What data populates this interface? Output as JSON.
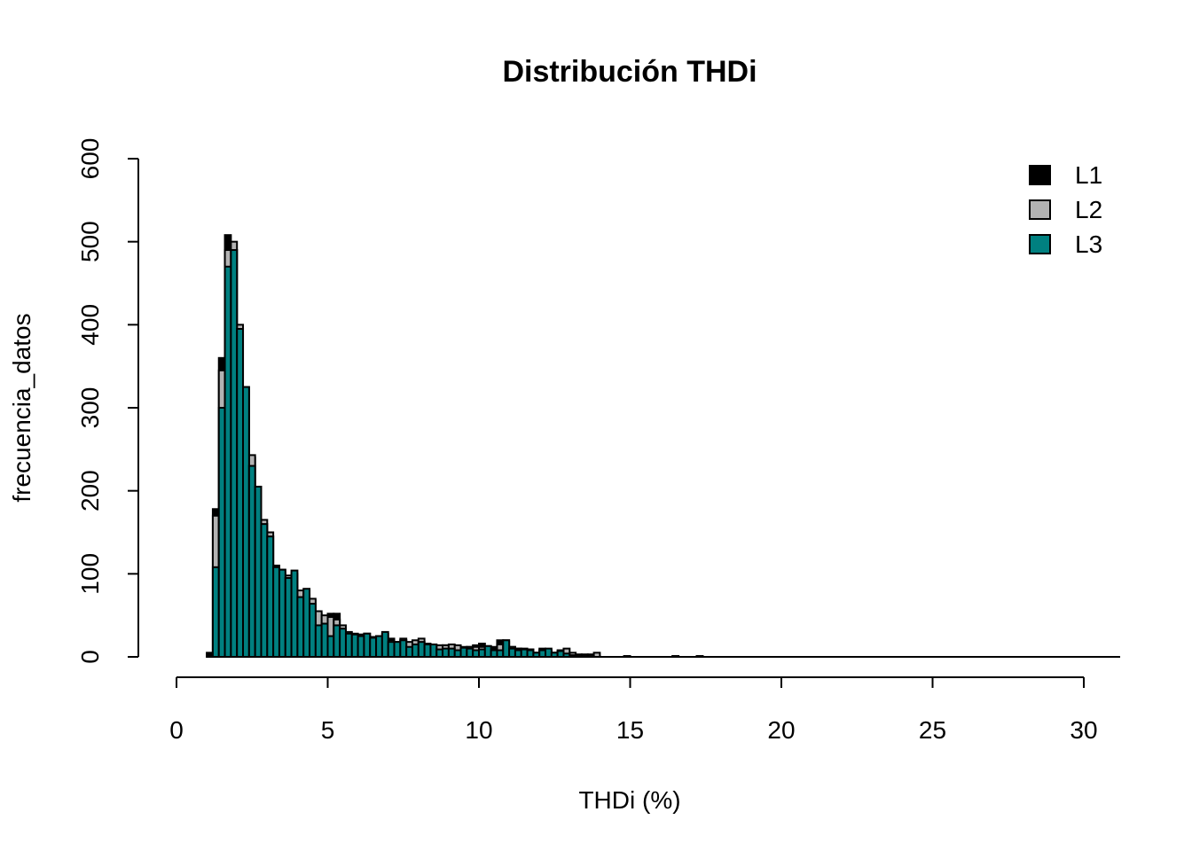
{
  "chart_data": {
    "type": "histogram",
    "title": "Distribución THDi",
    "xlabel": "THDi (%)",
    "ylabel": "frecuencia_datos",
    "xlim": [
      0,
      30
    ],
    "ylim": [
      0,
      600
    ],
    "x_ticks": [
      "0",
      "5",
      "10",
      "15",
      "20",
      "25",
      "30"
    ],
    "y_ticks": [
      "0",
      "100",
      "200",
      "300",
      "400",
      "500",
      "600"
    ],
    "bin_width": 0.2,
    "grid": false,
    "legend_position": "top-right",
    "series": [
      {
        "name": "L1",
        "color": "#000000",
        "bins": [
          [
            1.0,
            5
          ],
          [
            1.2,
            178
          ],
          [
            1.4,
            360
          ],
          [
            1.6,
            508
          ],
          [
            1.8,
            490
          ],
          [
            2.0,
            395
          ],
          [
            2.2,
            325
          ],
          [
            2.4,
            240
          ],
          [
            2.6,
            205
          ],
          [
            2.8,
            160
          ],
          [
            3.0,
            145
          ],
          [
            3.2,
            108
          ],
          [
            3.4,
            105
          ],
          [
            3.6,
            95
          ],
          [
            3.8,
            100
          ],
          [
            4.0,
            72
          ],
          [
            4.2,
            80
          ],
          [
            4.4,
            68
          ],
          [
            4.6,
            52
          ],
          [
            4.8,
            48
          ],
          [
            5.0,
            52
          ],
          [
            5.2,
            52
          ],
          [
            5.4,
            34
          ],
          [
            5.6,
            28
          ],
          [
            5.8,
            27
          ],
          [
            6.0,
            25
          ],
          [
            6.2,
            25
          ],
          [
            6.4,
            23
          ],
          [
            6.6,
            25
          ],
          [
            6.8,
            28
          ],
          [
            7.0,
            22
          ],
          [
            7.2,
            18
          ],
          [
            7.4,
            20
          ],
          [
            7.6,
            17
          ],
          [
            7.8,
            15
          ],
          [
            8.0,
            18
          ],
          [
            8.2,
            15
          ],
          [
            8.4,
            12
          ],
          [
            8.6,
            12
          ],
          [
            8.8,
            14
          ],
          [
            9.0,
            12
          ],
          [
            9.2,
            12
          ],
          [
            9.4,
            11
          ],
          [
            9.6,
            12
          ],
          [
            9.8,
            14
          ],
          [
            10.0,
            16
          ],
          [
            10.2,
            13
          ],
          [
            10.4,
            12
          ],
          [
            10.6,
            20
          ],
          [
            10.8,
            20
          ],
          [
            11.0,
            12
          ],
          [
            11.2,
            10
          ],
          [
            11.4,
            9
          ],
          [
            11.6,
            9
          ],
          [
            11.8,
            5
          ],
          [
            12.0,
            8
          ],
          [
            12.2,
            8
          ],
          [
            12.4,
            5
          ],
          [
            12.6,
            7
          ],
          [
            12.8,
            4
          ],
          [
            13.0,
            3
          ],
          [
            13.2,
            2
          ],
          [
            13.4,
            2
          ],
          [
            13.6,
            1
          ],
          [
            13.8,
            1
          ],
          [
            14.8,
            1
          ],
          [
            16.4,
            1
          ],
          [
            17.2,
            1
          ]
        ]
      },
      {
        "name": "L2",
        "color": "#b3b3b3",
        "bins": [
          [
            1.2,
            170
          ],
          [
            1.4,
            345
          ],
          [
            1.6,
            490
          ],
          [
            1.8,
            500
          ],
          [
            2.0,
            400
          ],
          [
            2.2,
            320
          ],
          [
            2.4,
            243
          ],
          [
            2.6,
            200
          ],
          [
            2.8,
            165
          ],
          [
            3.0,
            150
          ],
          [
            3.2,
            110
          ],
          [
            3.4,
            100
          ],
          [
            3.6,
            98
          ],
          [
            3.8,
            85
          ],
          [
            4.0,
            80
          ],
          [
            4.2,
            75
          ],
          [
            4.4,
            70
          ],
          [
            4.6,
            55
          ],
          [
            4.8,
            50
          ],
          [
            5.0,
            48
          ],
          [
            5.2,
            45
          ],
          [
            5.4,
            38
          ],
          [
            5.6,
            30
          ],
          [
            5.8,
            28
          ],
          [
            6.0,
            27
          ],
          [
            6.2,
            28
          ],
          [
            6.4,
            24
          ],
          [
            6.6,
            22
          ],
          [
            6.8,
            20
          ],
          [
            7.0,
            20
          ],
          [
            7.2,
            16
          ],
          [
            7.4,
            22
          ],
          [
            7.6,
            18
          ],
          [
            7.8,
            20
          ],
          [
            8.0,
            22
          ],
          [
            8.2,
            16
          ],
          [
            8.4,
            14
          ],
          [
            8.6,
            14
          ],
          [
            8.8,
            14
          ],
          [
            9.0,
            15
          ],
          [
            9.2,
            14
          ],
          [
            9.4,
            12
          ],
          [
            9.6,
            12
          ],
          [
            9.8,
            12
          ],
          [
            10.0,
            12
          ],
          [
            10.2,
            10
          ],
          [
            10.4,
            10
          ],
          [
            10.6,
            15
          ],
          [
            10.8,
            18
          ],
          [
            11.0,
            12
          ],
          [
            11.2,
            10
          ],
          [
            11.4,
            10
          ],
          [
            11.6,
            9
          ],
          [
            11.8,
            5
          ],
          [
            12.0,
            10
          ],
          [
            12.2,
            8
          ],
          [
            12.4,
            5
          ],
          [
            12.6,
            8
          ],
          [
            12.8,
            10
          ],
          [
            13.0,
            5
          ],
          [
            13.2,
            3
          ],
          [
            13.4,
            3
          ],
          [
            13.6,
            3
          ],
          [
            13.8,
            5
          ],
          [
            14.8,
            1
          ],
          [
            16.4,
            1
          ],
          [
            17.2,
            1
          ]
        ]
      },
      {
        "name": "L3",
        "color": "#008080",
        "bins": [
          [
            1.2,
            108
          ],
          [
            1.4,
            300
          ],
          [
            1.6,
            470
          ],
          [
            1.8,
            490
          ],
          [
            2.0,
            395
          ],
          [
            2.2,
            325
          ],
          [
            2.4,
            230
          ],
          [
            2.6,
            205
          ],
          [
            2.8,
            160
          ],
          [
            3.0,
            145
          ],
          [
            3.2,
            108
          ],
          [
            3.4,
            105
          ],
          [
            3.6,
            95
          ],
          [
            3.8,
            104
          ],
          [
            4.0,
            72
          ],
          [
            4.2,
            82
          ],
          [
            4.4,
            64
          ],
          [
            4.6,
            38
          ],
          [
            4.8,
            40
          ],
          [
            5.0,
            25
          ],
          [
            5.2,
            38
          ],
          [
            5.4,
            34
          ],
          [
            5.6,
            28
          ],
          [
            5.8,
            27
          ],
          [
            6.0,
            25
          ],
          [
            6.2,
            28
          ],
          [
            6.4,
            23
          ],
          [
            6.6,
            25
          ],
          [
            6.8,
            30
          ],
          [
            7.0,
            18
          ],
          [
            7.2,
            18
          ],
          [
            7.4,
            20
          ],
          [
            7.6,
            12
          ],
          [
            7.8,
            15
          ],
          [
            8.0,
            18
          ],
          [
            8.2,
            15
          ],
          [
            8.4,
            15
          ],
          [
            8.6,
            9
          ],
          [
            8.8,
            10
          ],
          [
            9.0,
            10
          ],
          [
            9.2,
            8
          ],
          [
            9.4,
            11
          ],
          [
            9.6,
            10
          ],
          [
            9.8,
            8
          ],
          [
            10.0,
            9
          ],
          [
            10.2,
            13
          ],
          [
            10.4,
            8
          ],
          [
            10.6,
            8
          ],
          [
            10.8,
            20
          ],
          [
            11.0,
            10
          ],
          [
            11.2,
            8
          ],
          [
            11.4,
            9
          ],
          [
            11.6,
            8
          ],
          [
            11.8,
            5
          ],
          [
            12.0,
            8
          ],
          [
            12.2,
            10
          ],
          [
            12.4,
            5
          ],
          [
            12.6,
            7
          ],
          [
            12.8,
            4
          ],
          [
            13.0,
            2
          ],
          [
            13.2,
            1
          ],
          [
            13.4,
            1
          ],
          [
            13.6,
            1
          ]
        ]
      }
    ]
  }
}
